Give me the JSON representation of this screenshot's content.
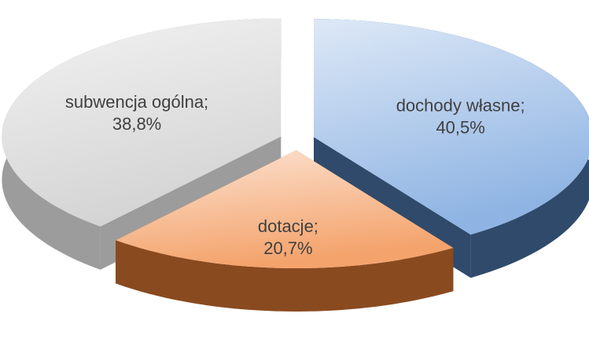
{
  "chart_data": {
    "type": "pie",
    "categories": [
      "dochody własne;",
      "dotacje;",
      "subwencja  ogólna;"
    ],
    "values": [
      40.5,
      20.7,
      38.8
    ],
    "value_labels": [
      "40,5%",
      "20,7%",
      "38,8%"
    ],
    "colors": [
      "#8fb4e3",
      "#f4a36c",
      "#d4d4d4"
    ],
    "side_colors": [
      "#2f4a6b",
      "#8a4a20",
      "#9c9c9c"
    ]
  }
}
